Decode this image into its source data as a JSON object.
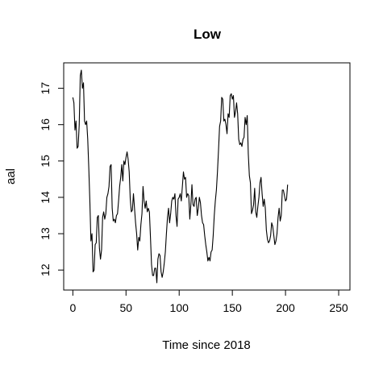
{
  "chart_data": {
    "type": "line",
    "title": "Low",
    "xlabel": "Time since 2018",
    "ylabel": "aal",
    "xlim": [
      -8.6,
      260.6
    ],
    "ylim": [
      11.45,
      17.7
    ],
    "x_ticks": [
      0,
      50,
      100,
      150,
      200,
      250
    ],
    "y_ticks": [
      12,
      13,
      14,
      15,
      16,
      17
    ],
    "grid": false,
    "line_color": "#000000",
    "series": [
      {
        "name": "",
        "points": [
          [
            0,
            16.75
          ],
          [
            1,
            16.6
          ],
          [
            2,
            15.85
          ],
          [
            3,
            16.1
          ],
          [
            4,
            15.35
          ],
          [
            5,
            15.4
          ],
          [
            6,
            16.0
          ],
          [
            7,
            17.35
          ],
          [
            8,
            17.5
          ],
          [
            9,
            17.0
          ],
          [
            10,
            17.15
          ],
          [
            11,
            16.1
          ],
          [
            12,
            16.0
          ],
          [
            13,
            16.1
          ],
          [
            14,
            15.6
          ],
          [
            15,
            14.8
          ],
          [
            16,
            13.9
          ],
          [
            17,
            12.8
          ],
          [
            18,
            13.0
          ],
          [
            19,
            11.95
          ],
          [
            20,
            12.0
          ],
          [
            21,
            12.7
          ],
          [
            22,
            12.75
          ],
          [
            23,
            13.45
          ],
          [
            24,
            13.5
          ],
          [
            25,
            12.6
          ],
          [
            26,
            12.3
          ],
          [
            27,
            12.55
          ],
          [
            28,
            13.45
          ],
          [
            29,
            13.6
          ],
          [
            30,
            13.4
          ],
          [
            31,
            13.55
          ],
          [
            32,
            14.0
          ],
          [
            33,
            14.1
          ],
          [
            34,
            14.3
          ],
          [
            35,
            14.85
          ],
          [
            36,
            14.9
          ],
          [
            37,
            13.7
          ],
          [
            38,
            13.35
          ],
          [
            39,
            13.4
          ],
          [
            40,
            13.3
          ],
          [
            41,
            13.5
          ],
          [
            42,
            13.55
          ],
          [
            43,
            13.9
          ],
          [
            44,
            14.3
          ],
          [
            45,
            14.55
          ],
          [
            46,
            14.9
          ],
          [
            47,
            14.45
          ],
          [
            48,
            15.0
          ],
          [
            49,
            14.9
          ],
          [
            50,
            15.1
          ],
          [
            51,
            15.25
          ],
          [
            52,
            15.05
          ],
          [
            53,
            14.7
          ],
          [
            54,
            13.95
          ],
          [
            55,
            13.6
          ],
          [
            56,
            13.65
          ],
          [
            57,
            14.1
          ],
          [
            58,
            13.7
          ],
          [
            59,
            13.3
          ],
          [
            60,
            13.0
          ],
          [
            61,
            12.55
          ],
          [
            62,
            12.9
          ],
          [
            63,
            12.8
          ],
          [
            64,
            13.25
          ],
          [
            65,
            13.55
          ],
          [
            66,
            14.3
          ],
          [
            67,
            13.9
          ],
          [
            68,
            13.7
          ],
          [
            69,
            13.9
          ],
          [
            70,
            13.6
          ],
          [
            71,
            13.7
          ],
          [
            72,
            13.6
          ],
          [
            73,
            12.9
          ],
          [
            74,
            12.15
          ],
          [
            75,
            11.85
          ],
          [
            76,
            11.85
          ],
          [
            77,
            12.05
          ],
          [
            78,
            12.05
          ],
          [
            79,
            11.65
          ],
          [
            80,
            12.3
          ],
          [
            81,
            12.45
          ],
          [
            82,
            12.4
          ],
          [
            83,
            11.95
          ],
          [
            84,
            11.8
          ],
          [
            85,
            11.95
          ],
          [
            86,
            12.2
          ],
          [
            87,
            12.5
          ],
          [
            88,
            13.0
          ],
          [
            89,
            13.45
          ],
          [
            90,
            13.7
          ],
          [
            91,
            13.3
          ],
          [
            92,
            13.55
          ],
          [
            93,
            13.9
          ],
          [
            94,
            14.0
          ],
          [
            95,
            13.95
          ],
          [
            96,
            14.1
          ],
          [
            97,
            13.5
          ],
          [
            98,
            13.2
          ],
          [
            99,
            13.95
          ],
          [
            100,
            14.0
          ],
          [
            101,
            14.1
          ],
          [
            102,
            13.9
          ],
          [
            103,
            14.3
          ],
          [
            104,
            14.7
          ],
          [
            105,
            14.5
          ],
          [
            106,
            14.55
          ],
          [
            107,
            14.0
          ],
          [
            108,
            14.1
          ],
          [
            109,
            14.05
          ],
          [
            110,
            13.4
          ],
          [
            111,
            13.8
          ],
          [
            112,
            14.35
          ],
          [
            113,
            13.8
          ],
          [
            114,
            13.75
          ],
          [
            115,
            13.95
          ],
          [
            116,
            14.0
          ],
          [
            117,
            13.5
          ],
          [
            118,
            13.7
          ],
          [
            119,
            14.0
          ],
          [
            120,
            13.85
          ],
          [
            121,
            13.5
          ],
          [
            122,
            13.3
          ],
          [
            123,
            13.25
          ],
          [
            124,
            12.95
          ],
          [
            125,
            12.7
          ],
          [
            126,
            12.5
          ],
          [
            127,
            12.25
          ],
          [
            128,
            12.35
          ],
          [
            129,
            12.25
          ],
          [
            130,
            12.5
          ],
          [
            131,
            12.55
          ],
          [
            132,
            12.95
          ],
          [
            133,
            13.5
          ],
          [
            134,
            13.9
          ],
          [
            135,
            14.2
          ],
          [
            136,
            14.7
          ],
          [
            137,
            15.3
          ],
          [
            138,
            15.95
          ],
          [
            139,
            16.1
          ],
          [
            140,
            16.75
          ],
          [
            141,
            16.7
          ],
          [
            142,
            16.1
          ],
          [
            143,
            16.15
          ],
          [
            144,
            16.0
          ],
          [
            145,
            15.75
          ],
          [
            146,
            16.3
          ],
          [
            147,
            16.2
          ],
          [
            148,
            16.8
          ],
          [
            149,
            16.85
          ],
          [
            150,
            16.7
          ],
          [
            151,
            16.8
          ],
          [
            152,
            16.2
          ],
          [
            153,
            16.35
          ],
          [
            154,
            16.6
          ],
          [
            155,
            16.3
          ],
          [
            156,
            15.6
          ],
          [
            157,
            15.45
          ],
          [
            158,
            15.5
          ],
          [
            159,
            15.4
          ],
          [
            160,
            15.6
          ],
          [
            161,
            15.65
          ],
          [
            162,
            16.2
          ],
          [
            163,
            16.0
          ],
          [
            164,
            16.25
          ],
          [
            165,
            15.2
          ],
          [
            166,
            14.6
          ],
          [
            167,
            14.4
          ],
          [
            168,
            13.55
          ],
          [
            169,
            13.65
          ],
          [
            170,
            13.8
          ],
          [
            171,
            14.25
          ],
          [
            172,
            13.6
          ],
          [
            173,
            13.45
          ],
          [
            174,
            13.75
          ],
          [
            175,
            14.0
          ],
          [
            176,
            14.4
          ],
          [
            177,
            14.55
          ],
          [
            178,
            14.1
          ],
          [
            179,
            13.75
          ],
          [
            180,
            13.95
          ],
          [
            181,
            13.7
          ],
          [
            182,
            13.1
          ],
          [
            183,
            12.85
          ],
          [
            184,
            12.75
          ],
          [
            185,
            12.8
          ],
          [
            186,
            12.95
          ],
          [
            187,
            13.3
          ],
          [
            188,
            13.2
          ],
          [
            189,
            12.95
          ],
          [
            190,
            12.7
          ],
          [
            191,
            12.8
          ],
          [
            192,
            13.0
          ],
          [
            193,
            13.45
          ],
          [
            194,
            13.7
          ],
          [
            195,
            13.35
          ],
          [
            196,
            13.5
          ],
          [
            197,
            14.2
          ],
          [
            198,
            14.2
          ],
          [
            199,
            14.05
          ],
          [
            200,
            13.9
          ],
          [
            201,
            13.95
          ],
          [
            202,
            14.35
          ]
        ]
      }
    ]
  }
}
